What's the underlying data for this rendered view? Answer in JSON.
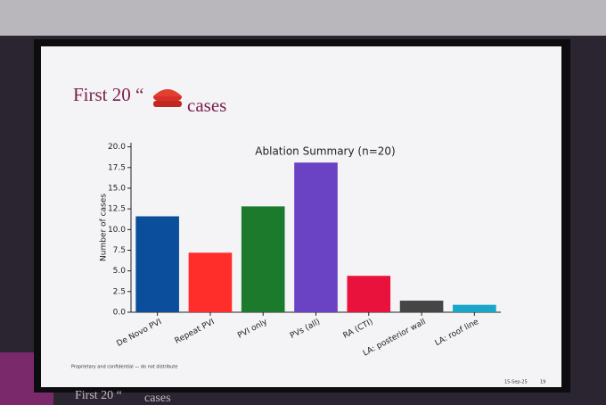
{
  "slide": {
    "title_pre": "First 20 “",
    "title_post": "cases",
    "footer": "Proprietary and confidential — do not distribute",
    "date": "15-Sep-25",
    "page": "19"
  },
  "chart_data": {
    "type": "bar",
    "title": "Ablation Summary (n=20)",
    "y_label": "Number of cases",
    "categories": [
      "De Novo PVI",
      "Repeat PVI",
      "PVI only",
      "PVs (all)",
      "RA (CTI)",
      "LA: posterior wall",
      "LA: roof line"
    ],
    "values": [
      11.6,
      7.2,
      12.8,
      18.1,
      4.4,
      1.4,
      0.9
    ],
    "colors": [
      "#0b4f9c",
      "#ff2e2a",
      "#1c7a2c",
      "#6a42c4",
      "#e8123c",
      "#454545",
      "#1aa6c8"
    ],
    "ylim": [
      0,
      20.5
    ],
    "yticks": [
      {
        "value": 0,
        "label": "0.0"
      },
      {
        "value": 2.5,
        "label": "2.5"
      },
      {
        "value": 5,
        "label": "5.0"
      },
      {
        "value": 7.5,
        "label": "7.5"
      },
      {
        "value": 10,
        "label": "10.0"
      },
      {
        "value": 12.5,
        "label": "12.5"
      },
      {
        "value": 15,
        "label": "15.0"
      },
      {
        "value": 17.5,
        "label": "17.5"
      },
      {
        "value": 20,
        "label": "20.0"
      }
    ]
  }
}
